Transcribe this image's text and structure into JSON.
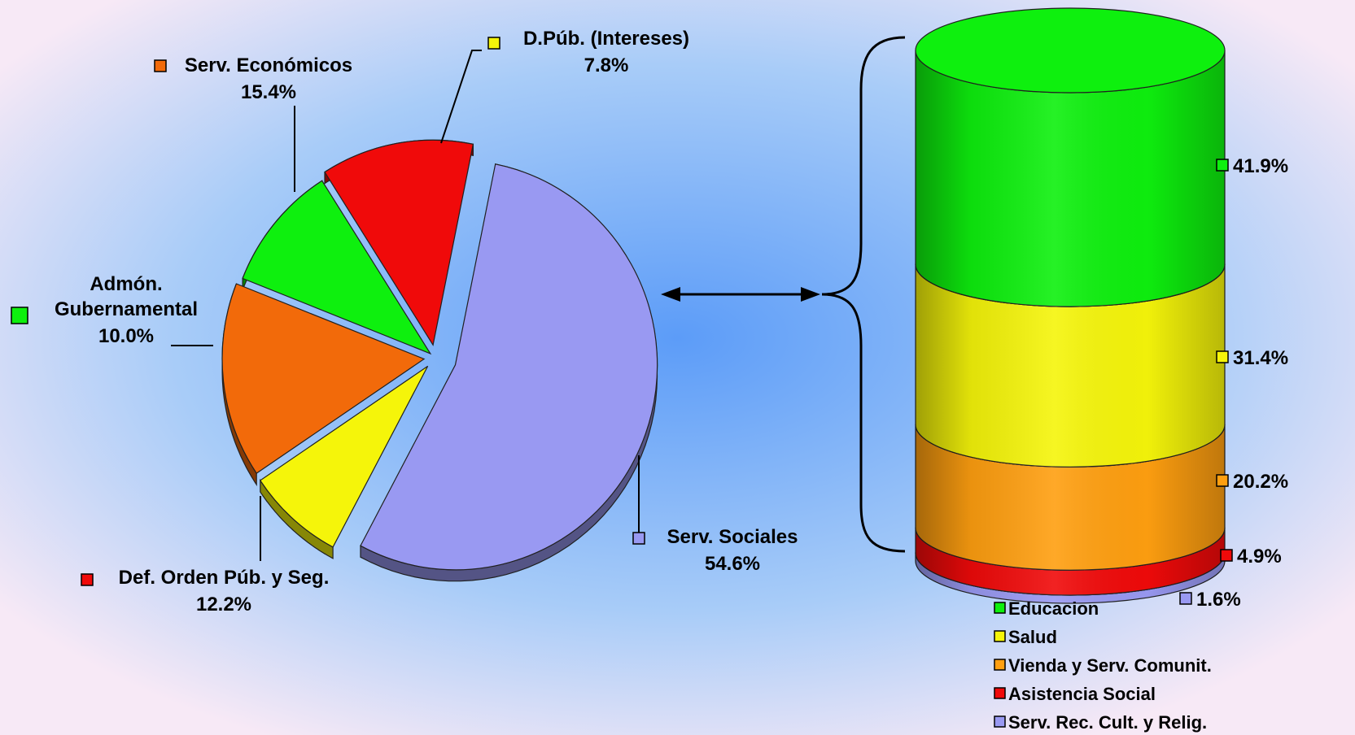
{
  "chart_data": [
    {
      "type": "pie",
      "title": "",
      "slices": [
        {
          "label": "Serv. Sociales",
          "value": 54.6,
          "display": "54.6%",
          "color": "#9999f2"
        },
        {
          "label": "D.Púb. (Intereses)",
          "value": 7.8,
          "display": "7.8%",
          "color": "#f5f50a"
        },
        {
          "label": "Serv. Económicos",
          "value": 15.4,
          "display": "15.4%",
          "color": "#f26a0a"
        },
        {
          "label": "Admón. Gubernamental",
          "value": 10.0,
          "display": "10.0%",
          "color": "#0ef00e"
        },
        {
          "label": "Def. Orden Púb. y Seg.",
          "value": 12.2,
          "display": "12.2%",
          "color": "#f00a0a"
        }
      ]
    },
    {
      "type": "bar",
      "subtype": "stacked-cylinder",
      "title": "",
      "breakdown_of": "Serv. Sociales",
      "segments": [
        {
          "label": "Educacion",
          "value": 41.9,
          "display": "41.9%",
          "color": "#0ef00e"
        },
        {
          "label": "Salud",
          "value": 31.4,
          "display": "31.4%",
          "color": "#f5f50a"
        },
        {
          "label": "Vienda y Serv. Comunit.",
          "value": 20.2,
          "display": "20.2%",
          "color": "#ff9f10"
        },
        {
          "label": "Asistencia Social",
          "value": 4.9,
          "display": "4.9%",
          "color": "#f00a0a"
        },
        {
          "label": "Serv. Rec. Cult. y Relig.",
          "value": 1.6,
          "display": "1.6%",
          "color": "#9999f2"
        }
      ]
    }
  ],
  "colors": {
    "background_center": "#5c9cf8",
    "background_edge": "#f7e9f6",
    "pie_edge": "#202020"
  },
  "icons": [
    "double-arrow-icon",
    "curly-brace-icon"
  ]
}
